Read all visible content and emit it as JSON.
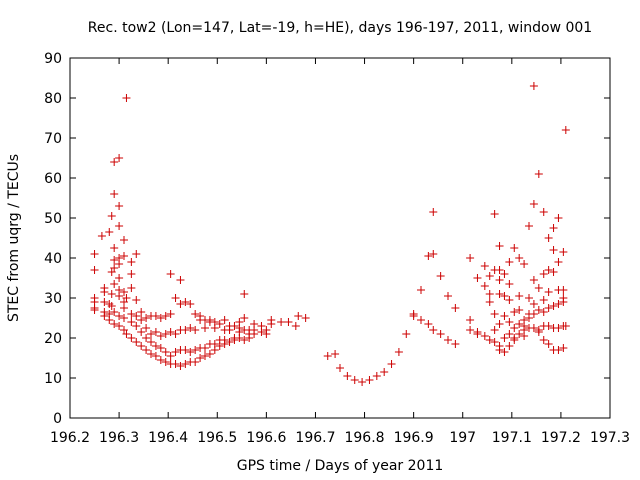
{
  "chart_data": {
    "type": "scatter",
    "title": "Rec. tow2 (Lon=147, Lat=-19, h=HE), days 196-197, 2011, window 001",
    "xlabel": "GPS time / Days of year 2011",
    "ylabel": "STEC from uqrg / TECUs",
    "xlim": [
      196.2,
      197.3
    ],
    "ylim": [
      0,
      90
    ],
    "xticks": [
      "196.2",
      "196.3",
      "196.4",
      "196.5",
      "196.6",
      "196.7",
      "196.8",
      "196.9",
      "197",
      "197.1",
      "197.2",
      "197.3"
    ],
    "yticks": [
      "0",
      "10",
      "20",
      "30",
      "40",
      "50",
      "60",
      "70",
      "80",
      "90"
    ],
    "grid": false,
    "legend": "none",
    "marker": "+",
    "color": "#cc0000",
    "series": [
      {
        "points": [
          [
            196.25,
            41
          ],
          [
            196.25,
            37
          ],
          [
            196.25,
            30
          ],
          [
            196.25,
            29
          ],
          [
            196.25,
            27.5
          ],
          [
            196.25,
            27
          ],
          [
            196.265,
            45.5
          ],
          [
            196.27,
            32.5
          ],
          [
            196.27,
            31.5
          ],
          [
            196.27,
            29
          ],
          [
            196.27,
            26.5
          ],
          [
            196.27,
            25.5
          ],
          [
            196.28,
            46.5
          ],
          [
            196.28,
            28.5
          ],
          [
            196.28,
            26
          ],
          [
            196.28,
            24.5
          ],
          [
            196.285,
            50.5
          ],
          [
            196.285,
            36.5
          ],
          [
            196.285,
            31
          ],
          [
            196.285,
            28
          ],
          [
            196.29,
            64
          ],
          [
            196.29,
            56
          ],
          [
            196.29,
            42.5
          ],
          [
            196.29,
            39.5
          ],
          [
            196.29,
            37.5
          ],
          [
            196.29,
            33.5
          ],
          [
            196.29,
            26.5
          ],
          [
            196.29,
            23.5
          ],
          [
            196.3,
            65
          ],
          [
            196.3,
            53
          ],
          [
            196.3,
            48
          ],
          [
            196.3,
            40
          ],
          [
            196.3,
            38.5
          ],
          [
            196.3,
            35
          ],
          [
            196.3,
            32
          ],
          [
            196.3,
            30.5
          ],
          [
            196.3,
            25.5
          ],
          [
            196.3,
            23
          ],
          [
            196.31,
            44.5
          ],
          [
            196.31,
            40.5
          ],
          [
            196.31,
            31.5
          ],
          [
            196.31,
            29
          ],
          [
            196.31,
            27.5
          ],
          [
            196.31,
            25
          ],
          [
            196.31,
            22
          ],
          [
            196.315,
            80
          ],
          [
            196.315,
            30
          ],
          [
            196.315,
            21
          ],
          [
            196.325,
            39
          ],
          [
            196.325,
            36
          ],
          [
            196.325,
            32.5
          ],
          [
            196.325,
            26
          ],
          [
            196.325,
            24
          ],
          [
            196.325,
            20
          ],
          [
            196.335,
            41
          ],
          [
            196.335,
            29.5
          ],
          [
            196.335,
            25.5
          ],
          [
            196.335,
            23
          ],
          [
            196.335,
            19
          ],
          [
            196.345,
            26.5
          ],
          [
            196.345,
            24.5
          ],
          [
            196.345,
            21.5
          ],
          [
            196.345,
            18
          ],
          [
            196.355,
            25
          ],
          [
            196.355,
            22.5
          ],
          [
            196.355,
            20
          ],
          [
            196.355,
            17
          ],
          [
            196.365,
            25.5
          ],
          [
            196.365,
            21
          ],
          [
            196.365,
            19
          ],
          [
            196.365,
            16
          ],
          [
            196.375,
            25.5
          ],
          [
            196.375,
            21.5
          ],
          [
            196.375,
            18
          ],
          [
            196.375,
            15.5
          ],
          [
            196.385,
            25
          ],
          [
            196.385,
            20.5
          ],
          [
            196.385,
            17.5
          ],
          [
            196.385,
            14.5
          ],
          [
            196.395,
            25.5
          ],
          [
            196.395,
            21
          ],
          [
            196.395,
            16.5
          ],
          [
            196.395,
            14
          ],
          [
            196.405,
            36
          ],
          [
            196.405,
            26
          ],
          [
            196.405,
            21.5
          ],
          [
            196.405,
            15.5
          ],
          [
            196.405,
            13.5
          ],
          [
            196.415,
            30
          ],
          [
            196.415,
            21
          ],
          [
            196.415,
            16.5
          ],
          [
            196.415,
            13.5
          ],
          [
            196.425,
            34.5
          ],
          [
            196.425,
            28.5
          ],
          [
            196.425,
            22
          ],
          [
            196.425,
            17
          ],
          [
            196.425,
            13
          ],
          [
            196.435,
            29
          ],
          [
            196.435,
            22
          ],
          [
            196.435,
            17
          ],
          [
            196.435,
            13.5
          ],
          [
            196.445,
            28.5
          ],
          [
            196.445,
            22.5
          ],
          [
            196.445,
            16.5
          ],
          [
            196.445,
            14
          ],
          [
            196.455,
            26
          ],
          [
            196.455,
            22
          ],
          [
            196.455,
            17
          ],
          [
            196.455,
            14
          ],
          [
            196.465,
            25.5
          ],
          [
            196.465,
            24.5
          ],
          [
            196.465,
            17.5
          ],
          [
            196.465,
            15
          ],
          [
            196.475,
            24.5
          ],
          [
            196.475,
            22.5
          ],
          [
            196.475,
            17.5
          ],
          [
            196.475,
            15.5
          ],
          [
            196.485,
            24.5
          ],
          [
            196.485,
            24
          ],
          [
            196.485,
            18.5
          ],
          [
            196.485,
            16
          ],
          [
            196.495,
            24
          ],
          [
            196.495,
            22.5
          ],
          [
            196.495,
            18.5
          ],
          [
            196.495,
            17
          ],
          [
            196.505,
            23.5
          ],
          [
            196.505,
            19.5
          ],
          [
            196.505,
            18
          ],
          [
            196.515,
            24.5
          ],
          [
            196.515,
            22
          ],
          [
            196.515,
            19.5
          ],
          [
            196.515,
            18.5
          ],
          [
            196.525,
            23
          ],
          [
            196.525,
            22
          ],
          [
            196.525,
            19
          ],
          [
            196.535,
            23
          ],
          [
            196.535,
            20
          ],
          [
            196.535,
            19.5
          ],
          [
            196.545,
            24
          ],
          [
            196.545,
            22.5
          ],
          [
            196.545,
            21.5
          ],
          [
            196.545,
            20
          ],
          [
            196.555,
            31
          ],
          [
            196.555,
            25
          ],
          [
            196.555,
            22
          ],
          [
            196.555,
            19.5
          ],
          [
            196.565,
            22
          ],
          [
            196.565,
            21
          ],
          [
            196.565,
            20
          ],
          [
            196.575,
            23.5
          ],
          [
            196.575,
            22
          ],
          [
            196.575,
            21
          ],
          [
            196.59,
            23
          ],
          [
            196.59,
            21.5
          ],
          [
            196.6,
            22
          ],
          [
            196.6,
            21
          ],
          [
            196.61,
            24.5
          ],
          [
            196.61,
            23.5
          ],
          [
            196.63,
            24
          ],
          [
            196.645,
            24
          ],
          [
            196.66,
            23
          ],
          [
            196.665,
            25.5
          ],
          [
            196.68,
            25
          ],
          [
            196.725,
            15.5
          ],
          [
            196.74,
            16
          ],
          [
            196.75,
            12.5
          ],
          [
            196.765,
            10.5
          ],
          [
            196.78,
            9.5
          ],
          [
            196.795,
            9
          ],
          [
            196.81,
            9.5
          ],
          [
            196.825,
            10.5
          ],
          [
            196.84,
            11.5
          ],
          [
            196.855,
            13.5
          ],
          [
            196.87,
            16.5
          ],
          [
            196.885,
            21
          ],
          [
            196.9,
            26
          ],
          [
            196.9,
            25.5
          ],
          [
            196.915,
            32
          ],
          [
            196.915,
            24.5
          ],
          [
            196.93,
            40.5
          ],
          [
            196.93,
            23.5
          ],
          [
            196.94,
            51.5
          ],
          [
            196.94,
            41
          ],
          [
            196.94,
            22
          ],
          [
            196.955,
            35.5
          ],
          [
            196.955,
            21
          ],
          [
            196.97,
            30.5
          ],
          [
            196.97,
            19.5
          ],
          [
            196.985,
            27.5
          ],
          [
            196.985,
            18.5
          ],
          [
            197.015,
            40
          ],
          [
            197.015,
            24.5
          ],
          [
            197.015,
            22
          ],
          [
            197.03,
            35
          ],
          [
            197.03,
            21.5
          ],
          [
            197.03,
            21
          ],
          [
            197.045,
            38
          ],
          [
            197.045,
            33
          ],
          [
            197.045,
            20.5
          ],
          [
            197.055,
            35.5
          ],
          [
            197.055,
            31
          ],
          [
            197.055,
            29
          ],
          [
            197.055,
            19.5
          ],
          [
            197.065,
            51
          ],
          [
            197.065,
            37
          ],
          [
            197.065,
            26
          ],
          [
            197.065,
            22
          ],
          [
            197.065,
            19
          ],
          [
            197.075,
            43
          ],
          [
            197.075,
            37
          ],
          [
            197.075,
            34.5
          ],
          [
            197.075,
            31
          ],
          [
            197.075,
            23.5
          ],
          [
            197.075,
            18
          ],
          [
            197.075,
            17
          ],
          [
            197.085,
            36
          ],
          [
            197.085,
            30.5
          ],
          [
            197.085,
            25.5
          ],
          [
            197.085,
            20
          ],
          [
            197.085,
            16.5
          ],
          [
            197.095,
            39
          ],
          [
            197.095,
            33.5
          ],
          [
            197.095,
            29.5
          ],
          [
            197.095,
            24
          ],
          [
            197.095,
            21
          ],
          [
            197.095,
            18
          ],
          [
            197.105,
            42.5
          ],
          [
            197.105,
            26.5
          ],
          [
            197.105,
            22.5
          ],
          [
            197.105,
            20
          ],
          [
            197.105,
            19.5
          ],
          [
            197.115,
            40
          ],
          [
            197.115,
            30.5
          ],
          [
            197.115,
            27
          ],
          [
            197.115,
            23.5
          ],
          [
            197.115,
            21
          ],
          [
            197.125,
            38.5
          ],
          [
            197.125,
            24.5
          ],
          [
            197.125,
            23
          ],
          [
            197.125,
            22
          ],
          [
            197.125,
            20.5
          ],
          [
            197.135,
            48
          ],
          [
            197.135,
            30
          ],
          [
            197.135,
            26
          ],
          [
            197.135,
            25
          ],
          [
            197.135,
            22.5
          ],
          [
            197.145,
            83
          ],
          [
            197.145,
            53.5
          ],
          [
            197.145,
            34.5
          ],
          [
            197.145,
            28.5
          ],
          [
            197.145,
            26
          ],
          [
            197.145,
            22.5
          ],
          [
            197.155,
            61
          ],
          [
            197.155,
            32.5
          ],
          [
            197.155,
            27
          ],
          [
            197.155,
            22
          ],
          [
            197.155,
            21.5
          ],
          [
            197.165,
            51.5
          ],
          [
            197.165,
            36
          ],
          [
            197.165,
            29.5
          ],
          [
            197.165,
            26.5
          ],
          [
            197.165,
            23
          ],
          [
            197.165,
            19.5
          ],
          [
            197.175,
            45
          ],
          [
            197.175,
            37
          ],
          [
            197.175,
            31.5
          ],
          [
            197.175,
            27.5
          ],
          [
            197.175,
            23
          ],
          [
            197.175,
            18.5
          ],
          [
            197.185,
            47.5
          ],
          [
            197.185,
            42
          ],
          [
            197.185,
            36.5
          ],
          [
            197.185,
            28
          ],
          [
            197.185,
            22.5
          ],
          [
            197.185,
            17
          ],
          [
            197.195,
            50
          ],
          [
            197.195,
            39
          ],
          [
            197.195,
            32
          ],
          [
            197.195,
            28.5
          ],
          [
            197.195,
            22.5
          ],
          [
            197.195,
            17
          ],
          [
            197.205,
            41.5
          ],
          [
            197.205,
            32
          ],
          [
            197.205,
            30
          ],
          [
            197.205,
            29
          ],
          [
            197.205,
            23
          ],
          [
            197.205,
            17.5
          ],
          [
            197.21,
            72
          ],
          [
            197.21,
            23
          ]
        ]
      }
    ]
  }
}
